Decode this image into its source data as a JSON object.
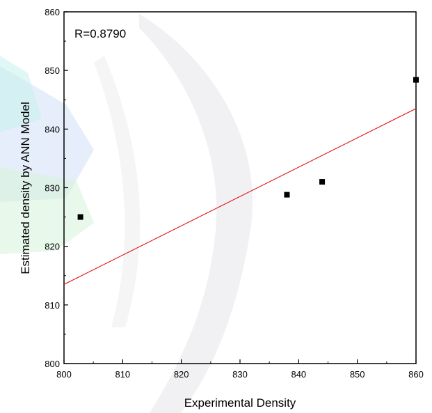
{
  "chart_data": {
    "type": "scatter",
    "xlabel": "Experimental Density",
    "ylabel": "Estimated density by ANN Model",
    "annotation": "R=0.8790",
    "xlim": [
      800,
      860
    ],
    "ylim": [
      800,
      860
    ],
    "x_ticks": [
      800,
      810,
      820,
      830,
      840,
      850,
      860
    ],
    "y_ticks": [
      800,
      810,
      820,
      830,
      840,
      850,
      860
    ],
    "points": [
      {
        "x": 802.8,
        "y": 825.0
      },
      {
        "x": 838.0,
        "y": 828.8
      },
      {
        "x": 844.0,
        "y": 831.0
      },
      {
        "x": 860.0,
        "y": 848.4
      }
    ],
    "fit_line": {
      "x": [
        800,
        860
      ],
      "y": [
        813.5,
        843.5
      ]
    },
    "point_color": "#000000",
    "line_color": "#e00000",
    "grid": false,
    "legend": "none"
  }
}
